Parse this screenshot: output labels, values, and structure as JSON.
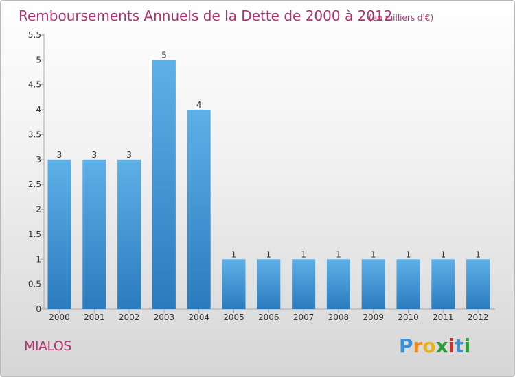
{
  "chart_data": {
    "type": "bar",
    "title": "Remboursements Annuels de la Dette de 2000 à 2012",
    "subtitle": "(en milliers d'€)",
    "categories": [
      "2000",
      "2001",
      "2002",
      "2003",
      "2004",
      "2005",
      "2006",
      "2007",
      "2008",
      "2009",
      "2010",
      "2011",
      "2012"
    ],
    "values": [
      3,
      3,
      3,
      5,
      4,
      1,
      1,
      1,
      1,
      1,
      1,
      1,
      1
    ],
    "data_labels": [
      "3",
      "3",
      "3",
      "5",
      "4",
      "1",
      "1",
      "1",
      "1",
      "1",
      "1",
      "1",
      "1"
    ],
    "ylim": [
      0,
      5.5
    ],
    "yticks": [
      0,
      0.5,
      1,
      1.5,
      2,
      2.5,
      3,
      3.5,
      4,
      4.5,
      5,
      5.5
    ],
    "ytick_labels": [
      "0",
      "0.5",
      "1",
      "1.5",
      "2",
      "2.5",
      "3",
      "3.5",
      "4",
      "4.5",
      "5",
      "5.5"
    ],
    "xlabel": "",
    "ylabel": "",
    "grid": false,
    "legend": "none",
    "bar_color_top": "#5eb0e8",
    "bar_color_bottom": "#2a7bbd",
    "title_color": "#b0336d"
  },
  "footer": {
    "commune": "MIALOS",
    "logo_letters": [
      "P",
      "r",
      "o",
      "x",
      "i",
      "t",
      "i"
    ],
    "logo_colors": [
      "#3a8fd6",
      "#f08a1c",
      "#e8b21a",
      "#2a9d3a",
      "#d42b2b",
      "#3a8fd6",
      "#2a9d3a"
    ]
  }
}
